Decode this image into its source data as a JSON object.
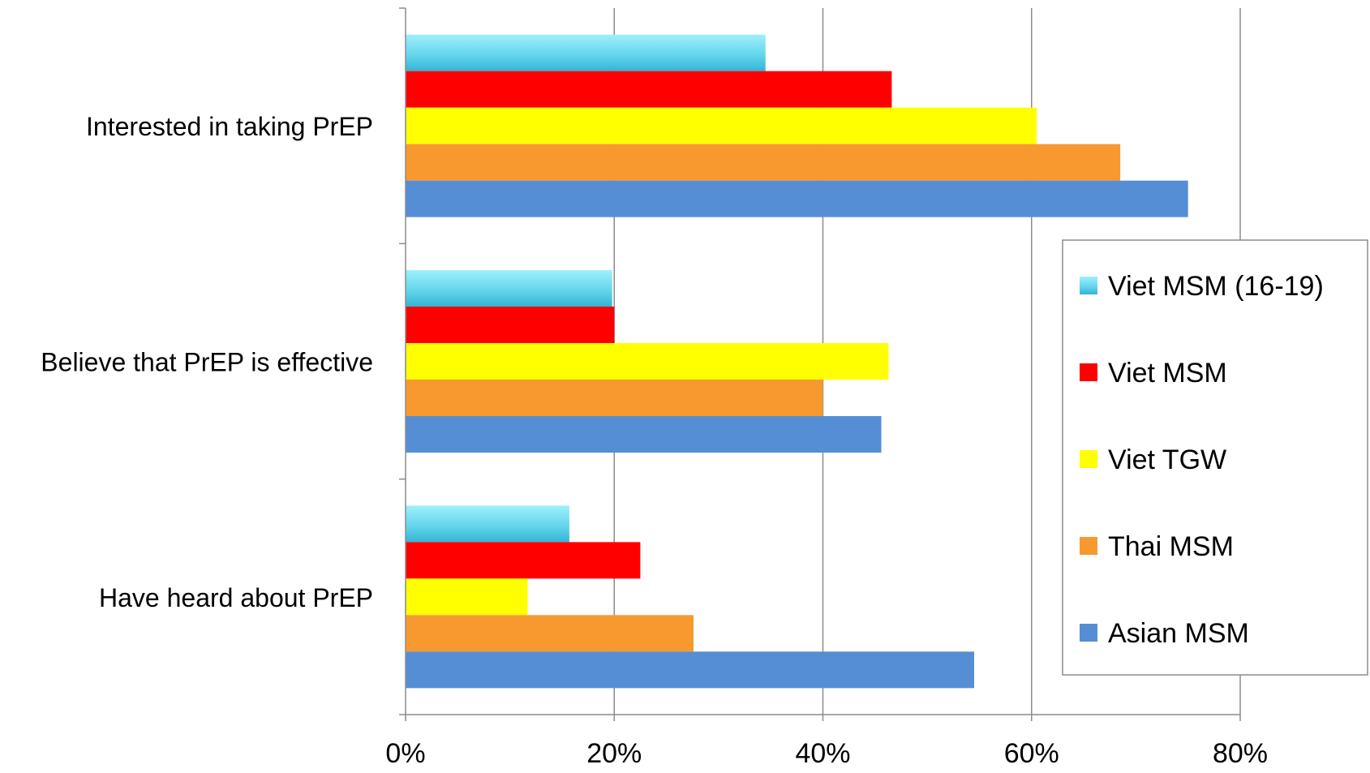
{
  "chart_data": {
    "type": "bar",
    "orientation": "horizontal",
    "categories": [
      "Interested in taking PrEP",
      "Believe that PrEP is effective",
      "Have heard about PrEP"
    ],
    "series": [
      {
        "name": "Viet MSM (16-19)",
        "color": "#5fd3ea",
        "values": [
          34.5,
          19.8,
          15.7
        ]
      },
      {
        "name": "Viet MSM",
        "color": "#ff0000",
        "values": [
          46.6,
          20.0,
          22.5
        ]
      },
      {
        "name": "Viet TGW",
        "color": "#ffff00",
        "values": [
          60.5,
          46.3,
          11.7
        ]
      },
      {
        "name": "Thai MSM",
        "color": "#f7992f",
        "values": [
          68.5,
          40.0,
          27.6
        ]
      },
      {
        "name": "Asian MSM",
        "color": "#558ed5",
        "values": [
          75.0,
          45.6,
          54.5
        ]
      }
    ],
    "xlim": [
      0,
      80
    ],
    "xticks": [
      "0%",
      "20%",
      "40%",
      "60%",
      "80%"
    ],
    "grid": "vertical",
    "legend_position": "right",
    "xlabel": "",
    "ylabel": "",
    "title": ""
  }
}
